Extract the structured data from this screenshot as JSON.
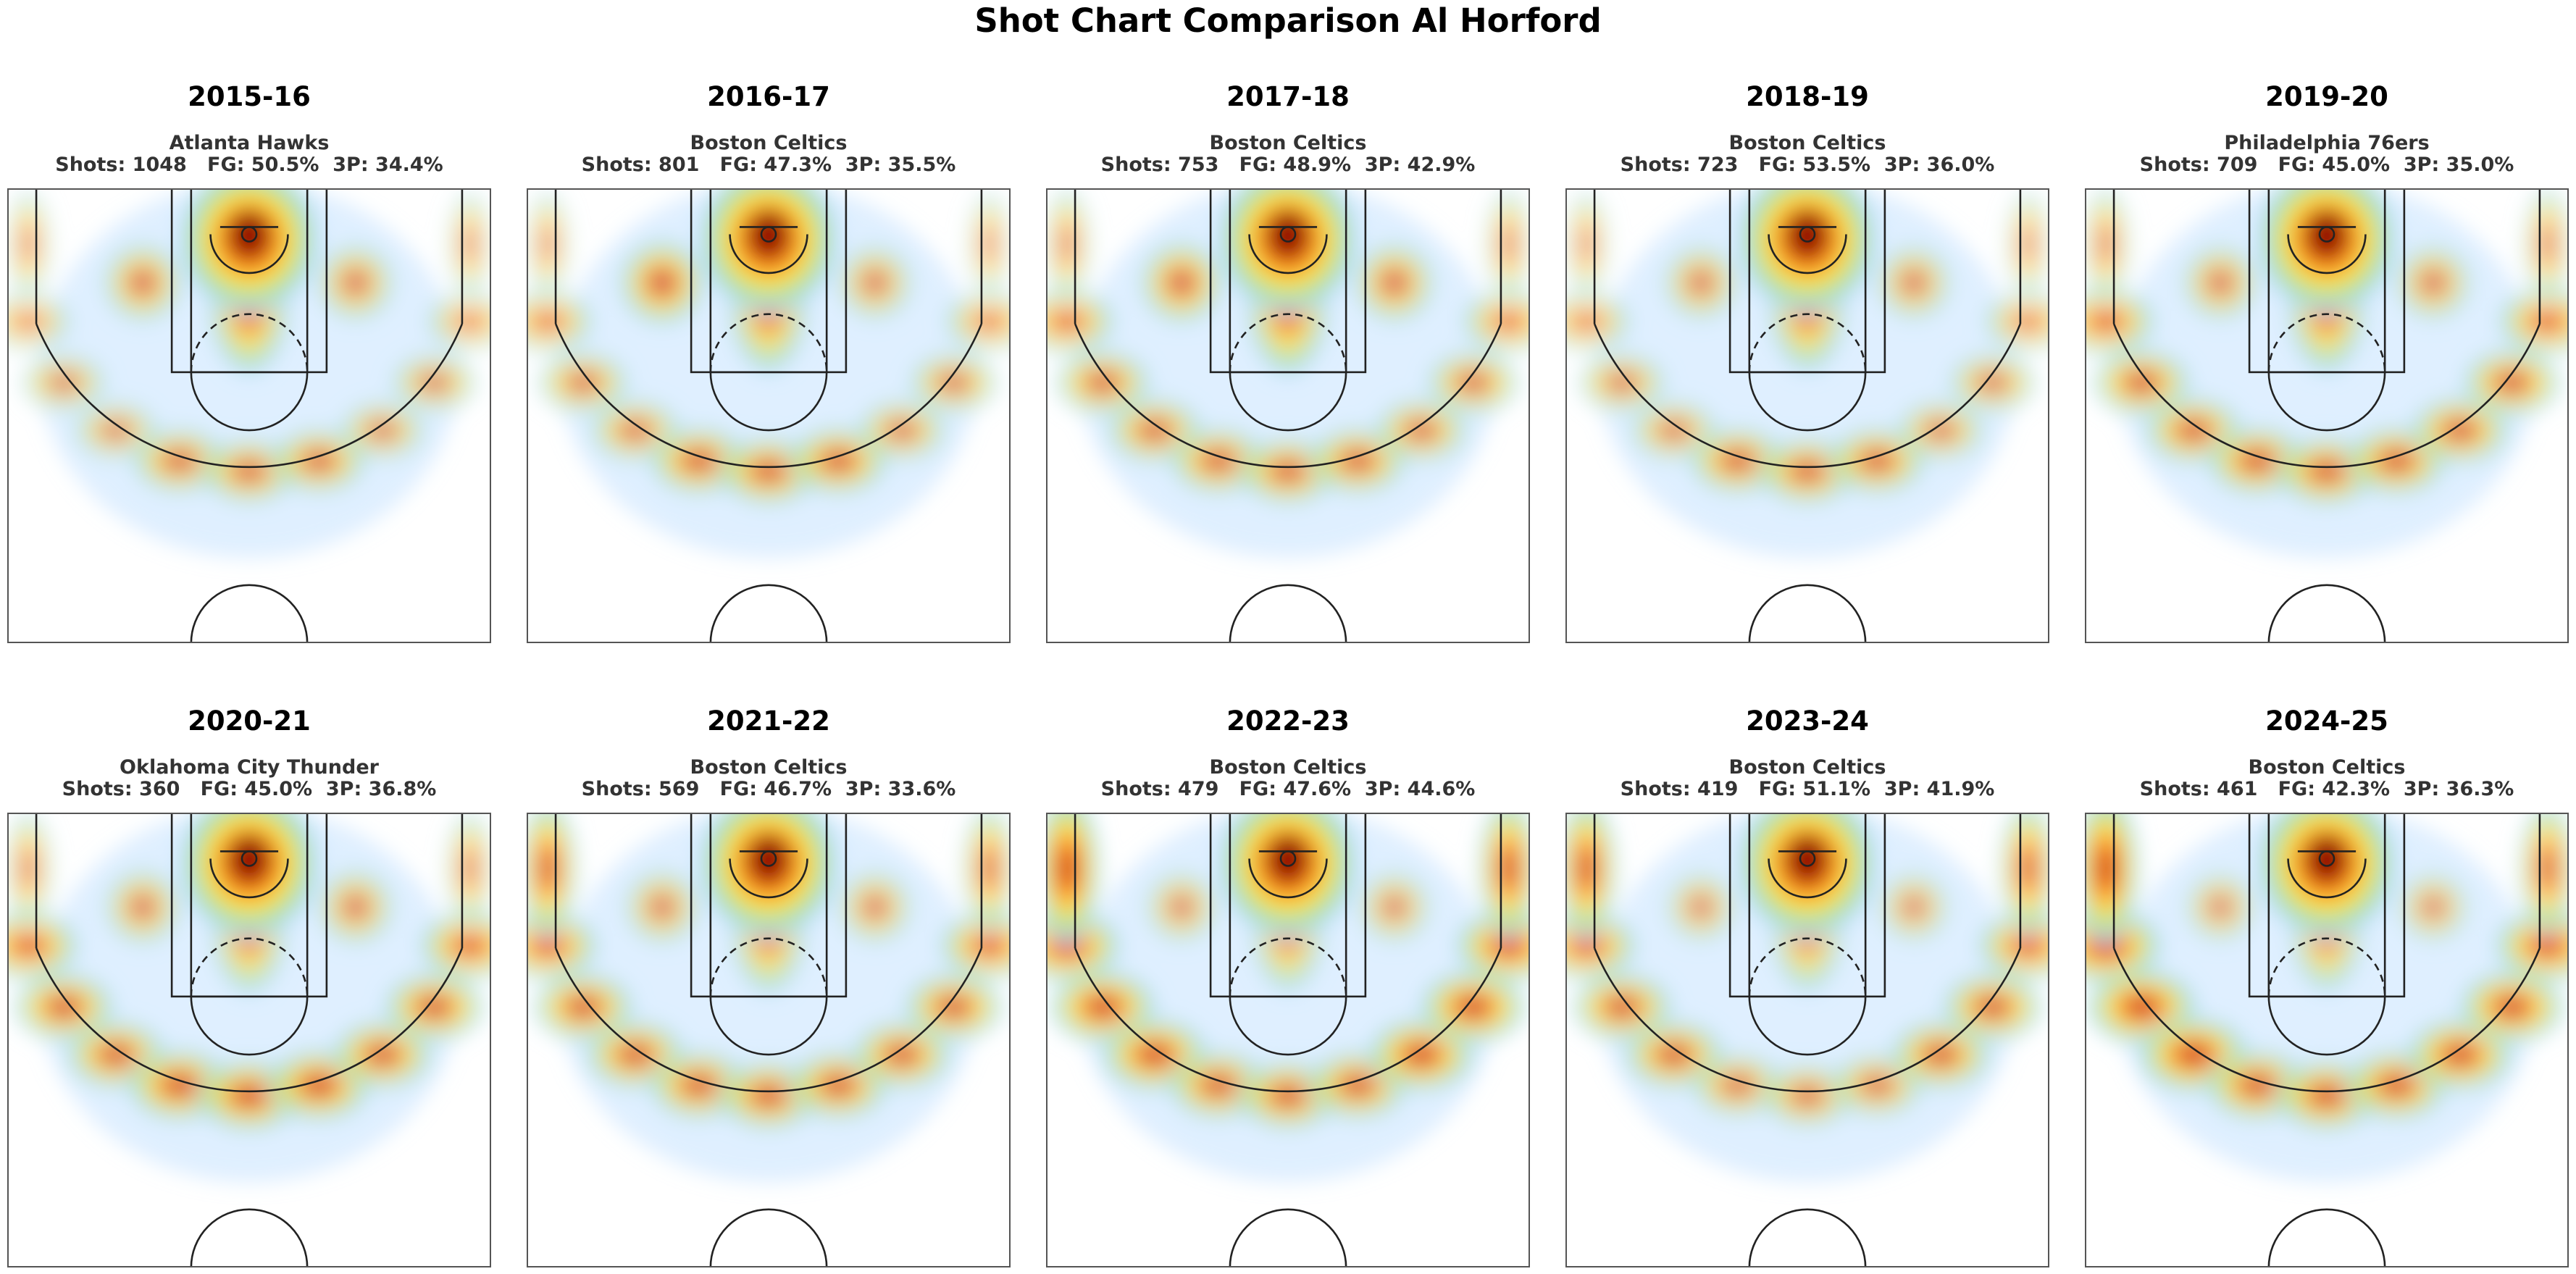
{
  "title": "Shot Chart Comparison Al Horford",
  "chart_data": {
    "type": "heatmap",
    "title": "Shot Chart Comparison Al Horford",
    "description_layout": "2 rows x 5 columns of half-court shot density heatmaps",
    "colormap": [
      "#ffffff",
      "#b9dcff",
      "#9fe0a0",
      "#ffe84d",
      "#ff9a1a",
      "#e02d10",
      "#8c0000"
    ],
    "panels": [
      {
        "season": "2015-16",
        "team": "Atlanta Hawks",
        "stats_line": "Shots: 1048   FG: 50.5%  3P: 34.4%",
        "shots": 1048,
        "fg_pct": 50.5,
        "three_pct": 34.4,
        "density_zones": {
          "rim": 1.0,
          "left_corner3": 0.22,
          "right_corner3": 0.2,
          "left_wing3": 0.3,
          "right_wing3": 0.32,
          "top_key3": 0.5,
          "left_midrange": 0.38,
          "right_midrange": 0.34,
          "paint": 0.55
        }
      },
      {
        "season": "2016-17",
        "team": "Boston Celtics",
        "stats_line": "Shots: 801   FG: 47.3%  3P: 35.5%",
        "shots": 801,
        "fg_pct": 47.3,
        "three_pct": 35.5,
        "density_zones": {
          "rim": 1.0,
          "left_corner3": 0.2,
          "right_corner3": 0.18,
          "left_wing3": 0.42,
          "right_wing3": 0.38,
          "top_key3": 0.58,
          "left_midrange": 0.5,
          "right_midrange": 0.3,
          "paint": 0.52
        }
      },
      {
        "season": "2017-18",
        "team": "Boston Celtics",
        "stats_line": "Shots: 753   FG: 48.9%  3P: 42.9%",
        "shots": 753,
        "fg_pct": 48.9,
        "three_pct": 42.9,
        "density_zones": {
          "rim": 1.0,
          "left_corner3": 0.28,
          "right_corner3": 0.26,
          "left_wing3": 0.5,
          "right_wing3": 0.45,
          "top_key3": 0.55,
          "left_midrange": 0.45,
          "right_midrange": 0.4,
          "paint": 0.58
        }
      },
      {
        "season": "2018-19",
        "team": "Boston Celtics",
        "stats_line": "Shots: 723   FG: 53.5%  3P: 36.0%",
        "shots": 723,
        "fg_pct": 53.5,
        "three_pct": 36.0,
        "density_zones": {
          "rim": 1.0,
          "left_corner3": 0.2,
          "right_corner3": 0.2,
          "left_wing3": 0.36,
          "right_wing3": 0.36,
          "top_key3": 0.55,
          "left_midrange": 0.3,
          "right_midrange": 0.3,
          "paint": 0.5
        }
      },
      {
        "season": "2019-20",
        "team": "Philadelphia 76ers",
        "stats_line": "Shots: 709   FG: 45.0%  3P: 35.0%",
        "shots": 709,
        "fg_pct": 45.0,
        "three_pct": 35.0,
        "density_zones": {
          "rim": 1.0,
          "left_corner3": 0.3,
          "right_corner3": 0.3,
          "left_wing3": 0.56,
          "right_wing3": 0.56,
          "top_key3": 0.6,
          "left_midrange": 0.32,
          "right_midrange": 0.32,
          "paint": 0.52
        }
      },
      {
        "season": "2020-21",
        "team": "Oklahoma City Thunder",
        "stats_line": "Shots: 360   FG: 45.0%  3P: 36.8%",
        "shots": 360,
        "fg_pct": 45.0,
        "three_pct": 36.8,
        "density_zones": {
          "rim": 1.0,
          "left_corner3": 0.3,
          "right_corner3": 0.3,
          "left_wing3": 0.6,
          "right_wing3": 0.6,
          "top_key3": 0.68,
          "left_midrange": 0.32,
          "right_midrange": 0.32,
          "paint": 0.45
        }
      },
      {
        "season": "2021-22",
        "team": "Boston Celtics",
        "stats_line": "Shots: 569   FG: 46.7%  3P: 33.6%",
        "shots": 569,
        "fg_pct": 46.7,
        "three_pct": 33.6,
        "density_zones": {
          "rim": 1.0,
          "left_corner3": 0.6,
          "right_corner3": 0.45,
          "left_wing3": 0.6,
          "right_wing3": 0.58,
          "top_key3": 0.6,
          "left_midrange": 0.3,
          "right_midrange": 0.28,
          "paint": 0.45
        }
      },
      {
        "season": "2022-23",
        "team": "Boston Celtics",
        "stats_line": "Shots: 479   FG: 47.6%  3P: 44.6%",
        "shots": 479,
        "fg_pct": 47.6,
        "three_pct": 44.6,
        "density_zones": {
          "rim": 1.0,
          "left_corner3": 0.8,
          "right_corner3": 0.65,
          "left_wing3": 0.72,
          "right_wing3": 0.72,
          "top_key3": 0.6,
          "left_midrange": 0.25,
          "right_midrange": 0.25,
          "paint": 0.4
        }
      },
      {
        "season": "2023-24",
        "team": "Boston Celtics",
        "stats_line": "Shots: 419   FG: 51.1%  3P: 41.9%",
        "shots": 419,
        "fg_pct": 51.1,
        "three_pct": 41.9,
        "density_zones": {
          "rim": 1.0,
          "left_corner3": 0.65,
          "right_corner3": 0.55,
          "left_wing3": 0.6,
          "right_wing3": 0.6,
          "top_key3": 0.45,
          "left_midrange": 0.22,
          "right_midrange": 0.22,
          "paint": 0.4
        }
      },
      {
        "season": "2024-25",
        "team": "Boston Celtics",
        "stats_line": "Shots: 461   FG: 42.3%  3P: 36.3%",
        "shots": 461,
        "fg_pct": 42.3,
        "three_pct": 36.3,
        "density_zones": {
          "rim": 1.0,
          "left_corner3": 0.8,
          "right_corner3": 0.55,
          "left_wing3": 0.8,
          "right_wing3": 0.7,
          "top_key3": 0.65,
          "left_midrange": 0.22,
          "right_midrange": 0.22,
          "paint": 0.4
        }
      }
    ]
  }
}
